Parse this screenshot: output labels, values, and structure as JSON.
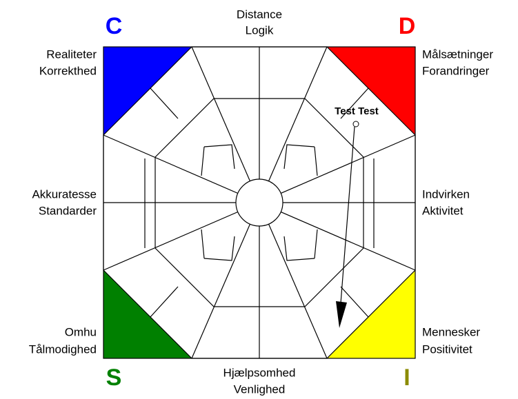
{
  "letters": {
    "c": "C",
    "d": "D",
    "s": "S",
    "i": "I"
  },
  "labels": {
    "top": [
      "Distance",
      "Logik"
    ],
    "bottom": [
      "Hjælpsomhed",
      "Venlighed"
    ],
    "left": [
      "Akkuratesse",
      "Standarder"
    ],
    "right": [
      "Indvirken",
      "Aktivitet"
    ],
    "top_left": [
      "Realiteter",
      "Korrekthed"
    ],
    "top_right": [
      "Målsætninger",
      "Forandringer"
    ],
    "bottom_left": [
      "Omhu",
      "Tålmodighed"
    ],
    "bottom_right": [
      "Mennesker",
      "Positivitet"
    ]
  },
  "marker": {
    "label": "Test Test"
  }
}
